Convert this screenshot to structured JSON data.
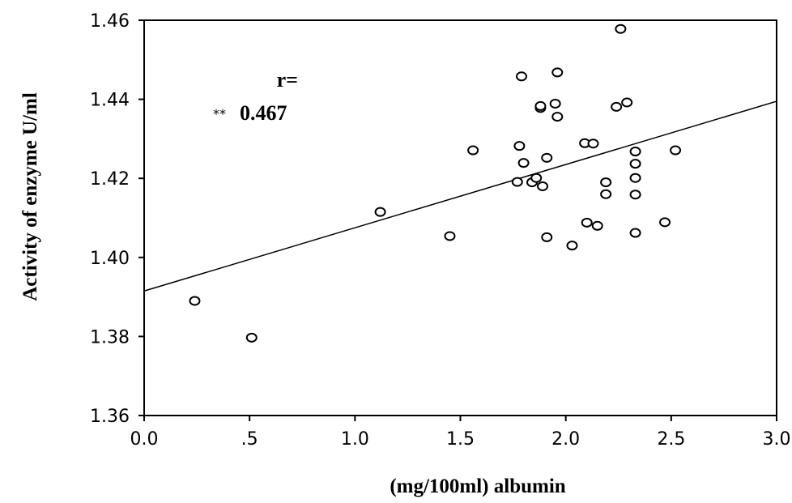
{
  "chart_data": {
    "type": "scatter",
    "xlabel": "(mg/100ml) albumin",
    "ylabel": "Activity of enzyme U/ml",
    "xlim": [
      0.0,
      3.0
    ],
    "ylim": [
      1.36,
      1.46
    ],
    "x_ticks": [
      0.0,
      0.5,
      1.0,
      1.5,
      2.0,
      2.5,
      3.0
    ],
    "x_tick_labels": [
      "0.0",
      ".5",
      "1.0",
      "1.5",
      "2.0",
      "2.5",
      "3.0"
    ],
    "y_ticks": [
      1.36,
      1.38,
      1.4,
      1.42,
      1.44,
      1.46
    ],
    "y_tick_labels": [
      "1.36",
      "1.38",
      "1.40",
      "1.42",
      "1.44",
      "1.46"
    ],
    "grid": false,
    "marker": "hollow-circle",
    "annotation": {
      "line1": "r=",
      "stars": "**",
      "value": "0.467"
    },
    "fit_line": {
      "x": [
        0.0,
        3.0
      ],
      "y": [
        1.3915,
        1.4395
      ]
    },
    "points": [
      {
        "x": 0.24,
        "y": 1.389
      },
      {
        "x": 0.51,
        "y": 1.3797
      },
      {
        "x": 1.12,
        "y": 1.4115
      },
      {
        "x": 1.45,
        "y": 1.4054
      },
      {
        "x": 1.56,
        "y": 1.4271
      },
      {
        "x": 1.77,
        "y": 1.4191
      },
      {
        "x": 1.78,
        "y": 1.4282
      },
      {
        "x": 1.79,
        "y": 1.4458
      },
      {
        "x": 1.8,
        "y": 1.4239
      },
      {
        "x": 1.84,
        "y": 1.419
      },
      {
        "x": 1.86,
        "y": 1.4201
      },
      {
        "x": 1.88,
        "y": 1.4378
      },
      {
        "x": 1.88,
        "y": 1.4383
      },
      {
        "x": 1.89,
        "y": 1.418
      },
      {
        "x": 1.91,
        "y": 1.4252
      },
      {
        "x": 1.91,
        "y": 1.4051
      },
      {
        "x": 1.95,
        "y": 1.4389
      },
      {
        "x": 1.96,
        "y": 1.4468
      },
      {
        "x": 1.96,
        "y": 1.4356
      },
      {
        "x": 2.03,
        "y": 1.403
      },
      {
        "x": 2.09,
        "y": 1.4289
      },
      {
        "x": 2.1,
        "y": 1.4088
      },
      {
        "x": 2.13,
        "y": 1.4288
      },
      {
        "x": 2.15,
        "y": 1.408
      },
      {
        "x": 2.19,
        "y": 1.419
      },
      {
        "x": 2.19,
        "y": 1.416
      },
      {
        "x": 2.24,
        "y": 1.4381
      },
      {
        "x": 2.26,
        "y": 1.4578
      },
      {
        "x": 2.29,
        "y": 1.4392
      },
      {
        "x": 2.33,
        "y": 1.4268
      },
      {
        "x": 2.33,
        "y": 1.4237
      },
      {
        "x": 2.33,
        "y": 1.4201
      },
      {
        "x": 2.33,
        "y": 1.4159
      },
      {
        "x": 2.33,
        "y": 1.4062
      },
      {
        "x": 2.47,
        "y": 1.4089
      },
      {
        "x": 2.52,
        "y": 1.4271
      }
    ]
  }
}
